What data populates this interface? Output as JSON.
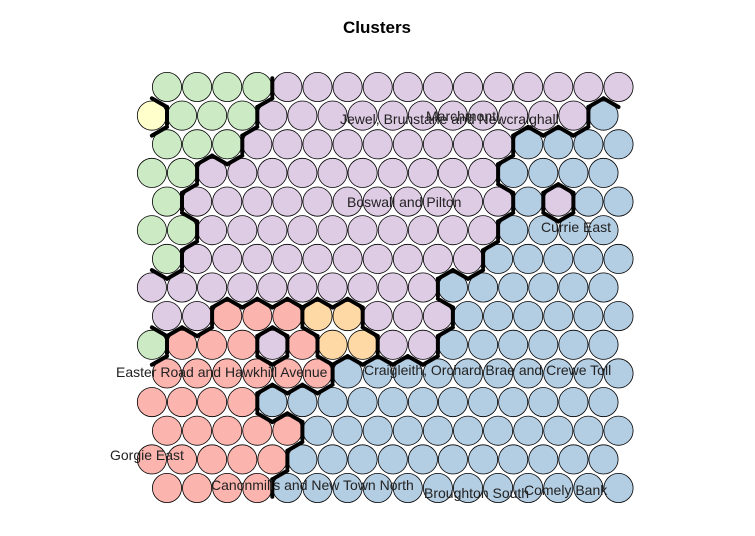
{
  "chart_data": {
    "type": "heatmap",
    "title": "Clusters",
    "grid": {
      "cols": 16,
      "rows": 15,
      "topology": "hexagonal"
    },
    "colors": {
      "red": "#FBB4AE",
      "blue": "#B3CDE3",
      "green": "#CCEBC5",
      "purple": "#DECBE4",
      "orange": "#FED9A6",
      "yellow": "#FFFFCC"
    },
    "cells": [
      "GGGGPPPPPPPPPPPP",
      "YGGGPPPPPPPPPPPB",
      "GGGPPPPPPPPPBBBB",
      "GGPPPPPPPPPPBBBB",
      "GPPPPPPPPPPPBPBB",
      "GGPPPPPPPPPPBBBB",
      "GPPPPPPPPPPBBBBB",
      "PPPPPPPPPPBBBBBB",
      "PPRRROOPPPBBBBBB",
      "GRRRPROOPPBBBBBB",
      "RRRRRRBBBBBBBBBB",
      "RRRRBBBBBBBBBBBB",
      "RRRRRBBBBBBBBBBB",
      "RRRRRBBBBBBBBBBB",
      "RRRRBBBBBBBBBBBB"
    ],
    "labels": [
      "Jewel, Brunstane and Newcraighall",
      "Marchmont",
      "Boswall and Pilton",
      "Currie East",
      "Easter Road and Hawkhill Avenue",
      "Craigleith, Orchard Brae and Crewe Toll",
      "Gorgie East",
      "Canonmills and New Town North",
      "Broughton South",
      "Comely Bank"
    ]
  }
}
